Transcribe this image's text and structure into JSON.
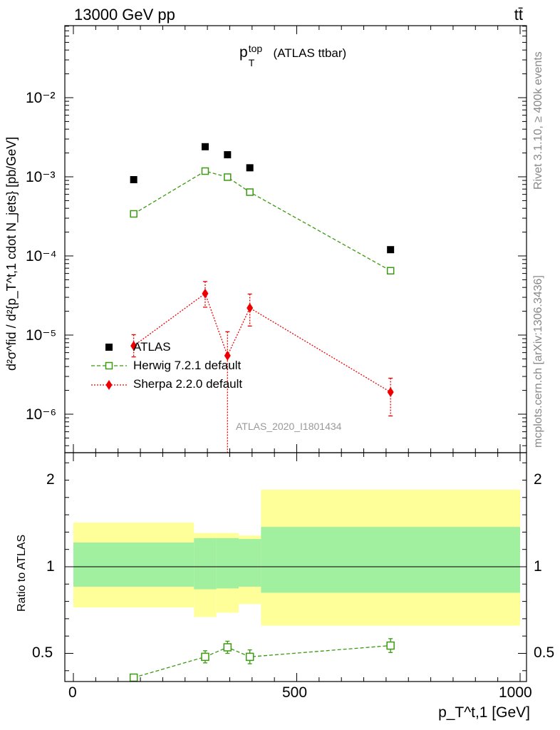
{
  "header": {
    "energy_label": "13000 GeV pp",
    "process_label": "tt̄",
    "title_main": "p",
    "title_sup": "top",
    "title_sub": "T",
    "title_rest": "(ATLAS ttbar)",
    "rivet_label": "Rivet 3.1.10, ≥ 400k events",
    "mcplots_label": "mcplots.cern.ch [arXiv:1306.3436]",
    "analysis_label": "ATLAS_2020_I1801434"
  },
  "axes": {
    "ylabel_main": "d²σ^fid / d²{p_T^t,1 cdot N_jets} [pb/GeV]",
    "ylabel_ratio": "Ratio to ATLAS",
    "xlabel": "p_T^t,1 [GeV]",
    "main_ticks": [
      "10⁻²",
      "10⁻³",
      "10⁻⁴",
      "10⁻⁵",
      "10⁻⁶"
    ],
    "ratio_ticks": [
      "2",
      "1",
      "0.5"
    ],
    "x_ticks": [
      "0",
      "500",
      "1000"
    ]
  },
  "legend": {
    "atlas": "ATLAS",
    "herwig": "Herwig 7.2.1 default",
    "sherpa": "Sherpa 2.2.0 default"
  },
  "colors": {
    "atlas": "#000000",
    "herwig": "#3a9a10",
    "sherpa": "#ee0000",
    "band_inner": "#a0f0a0",
    "band_outer": "#ffff99"
  },
  "chart_data": [
    {
      "type": "scatter",
      "title": "p_T^top (ATLAS ttbar)",
      "xlabel": "p_T^t,1 [GeV]",
      "ylabel": "d²σ^fid / d²{p_T^t,1 cdot N_jets} [pb/GeV]",
      "yscale": "log",
      "xlim": [
        -20,
        1020
      ],
      "ylim": [
        3e-07,
        0.03
      ],
      "series": [
        {
          "name": "ATLAS",
          "x": [
            135,
            295,
            345,
            395,
            710
          ],
          "y": [
            0.00092,
            0.0024,
            0.0019,
            0.0013,
            0.00012
          ]
        },
        {
          "name": "Herwig 7.2.1 default",
          "x": [
            135,
            295,
            345,
            395,
            710
          ],
          "y": [
            0.00034,
            0.00118,
            0.00099,
            0.00064,
            6.5e-05
          ]
        },
        {
          "name": "Sherpa 2.2.0 default",
          "x": [
            135,
            295,
            345,
            395,
            710
          ],
          "y": [
            7.3e-06,
            3.35e-05,
            5.5e-06,
            2.2e-05,
            1.9e-06
          ],
          "yerr_low": [
            2e-06,
            1.1e-05,
            5.3e-06,
            9e-06,
            9.5e-07
          ],
          "yerr_high": [
            2.8e-06,
            1.4e-05,
            5.5e-06,
            1.1e-05,
            9.5e-07
          ]
        }
      ]
    },
    {
      "type": "scatter",
      "ylabel": "Ratio to ATLAS",
      "xlabel": "p_T^t,1 [GeV]",
      "xlim": [
        -20,
        1020
      ],
      "ylim": [
        0.35,
        2.3
      ],
      "bands": [
        {
          "x0": 0,
          "x1": 270,
          "inner": [
            0.885,
            1.14
          ],
          "outer": [
            0.765,
            1.255
          ]
        },
        {
          "x0": 270,
          "x1": 320,
          "inner": [
            0.87,
            1.165
          ],
          "outer": [
            0.71,
            1.195
          ]
        },
        {
          "x0": 320,
          "x1": 370,
          "inner": [
            0.875,
            1.165
          ],
          "outer": [
            0.735,
            1.195
          ]
        },
        {
          "x0": 370,
          "x1": 420,
          "inner": [
            0.885,
            1.16
          ],
          "outer": [
            0.785,
            1.18
          ]
        },
        {
          "x0": 420,
          "x1": 1000,
          "inner": [
            0.85,
            1.23
          ],
          "outer": [
            0.66,
            1.445
          ]
        }
      ],
      "series": [
        {
          "name": "Herwig 7.2.1 default",
          "x": [
            135,
            295,
            345,
            395,
            710
          ],
          "y": [
            0.36,
            0.48,
            0.535,
            0.48,
            0.545
          ],
          "yerr": [
            0,
            0.035,
            0.035,
            0.04,
            0.04
          ]
        }
      ]
    }
  ]
}
